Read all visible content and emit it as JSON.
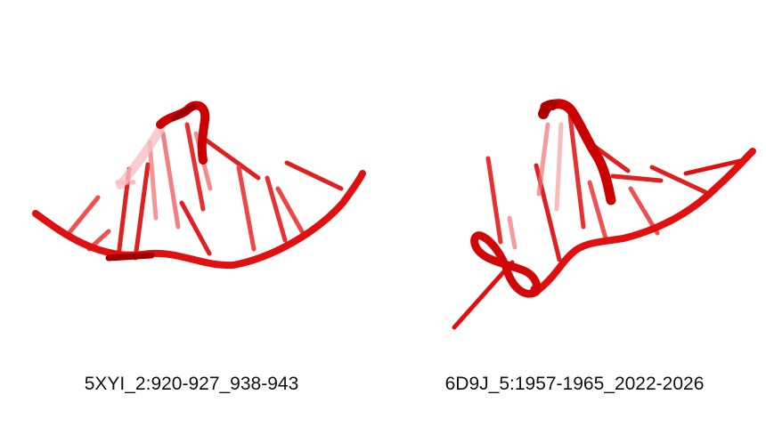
{
  "structures": [
    {
      "id": "5XYI_2:920-927_938-943",
      "color": "#e01010"
    },
    {
      "id": "6D9J_5:1957-1965_2022-2026",
      "color": "#e01010"
    }
  ]
}
